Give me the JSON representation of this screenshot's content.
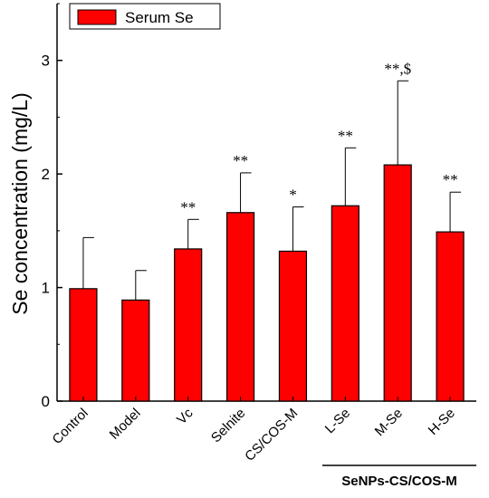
{
  "chart_data": {
    "type": "bar",
    "ylabel": "Se concentration (mg/L)",
    "xlabel": "",
    "ylim": [
      0,
      3.5
    ],
    "yticks": [
      0,
      1,
      2,
      3
    ],
    "categories": [
      "Control",
      "Model",
      "Vc",
      "Selnite",
      "CS/COS-M",
      "L-Se",
      "M-Se",
      "H-Se"
    ],
    "series": [
      {
        "name": "Serum Se",
        "color": "#ff0000",
        "values": [
          0.99,
          0.89,
          1.34,
          1.66,
          1.32,
          1.72,
          2.08,
          1.49
        ],
        "error_upper": [
          1.44,
          1.15,
          1.6,
          2.01,
          1.71,
          2.23,
          2.82,
          1.84
        ]
      }
    ],
    "significance": [
      "",
      "",
      "**",
      "**",
      "*",
      "**",
      "**,$",
      "**"
    ],
    "group_label": "SeNPs-CS/COS-M",
    "legend_position": "top-left",
    "grid": false
  }
}
